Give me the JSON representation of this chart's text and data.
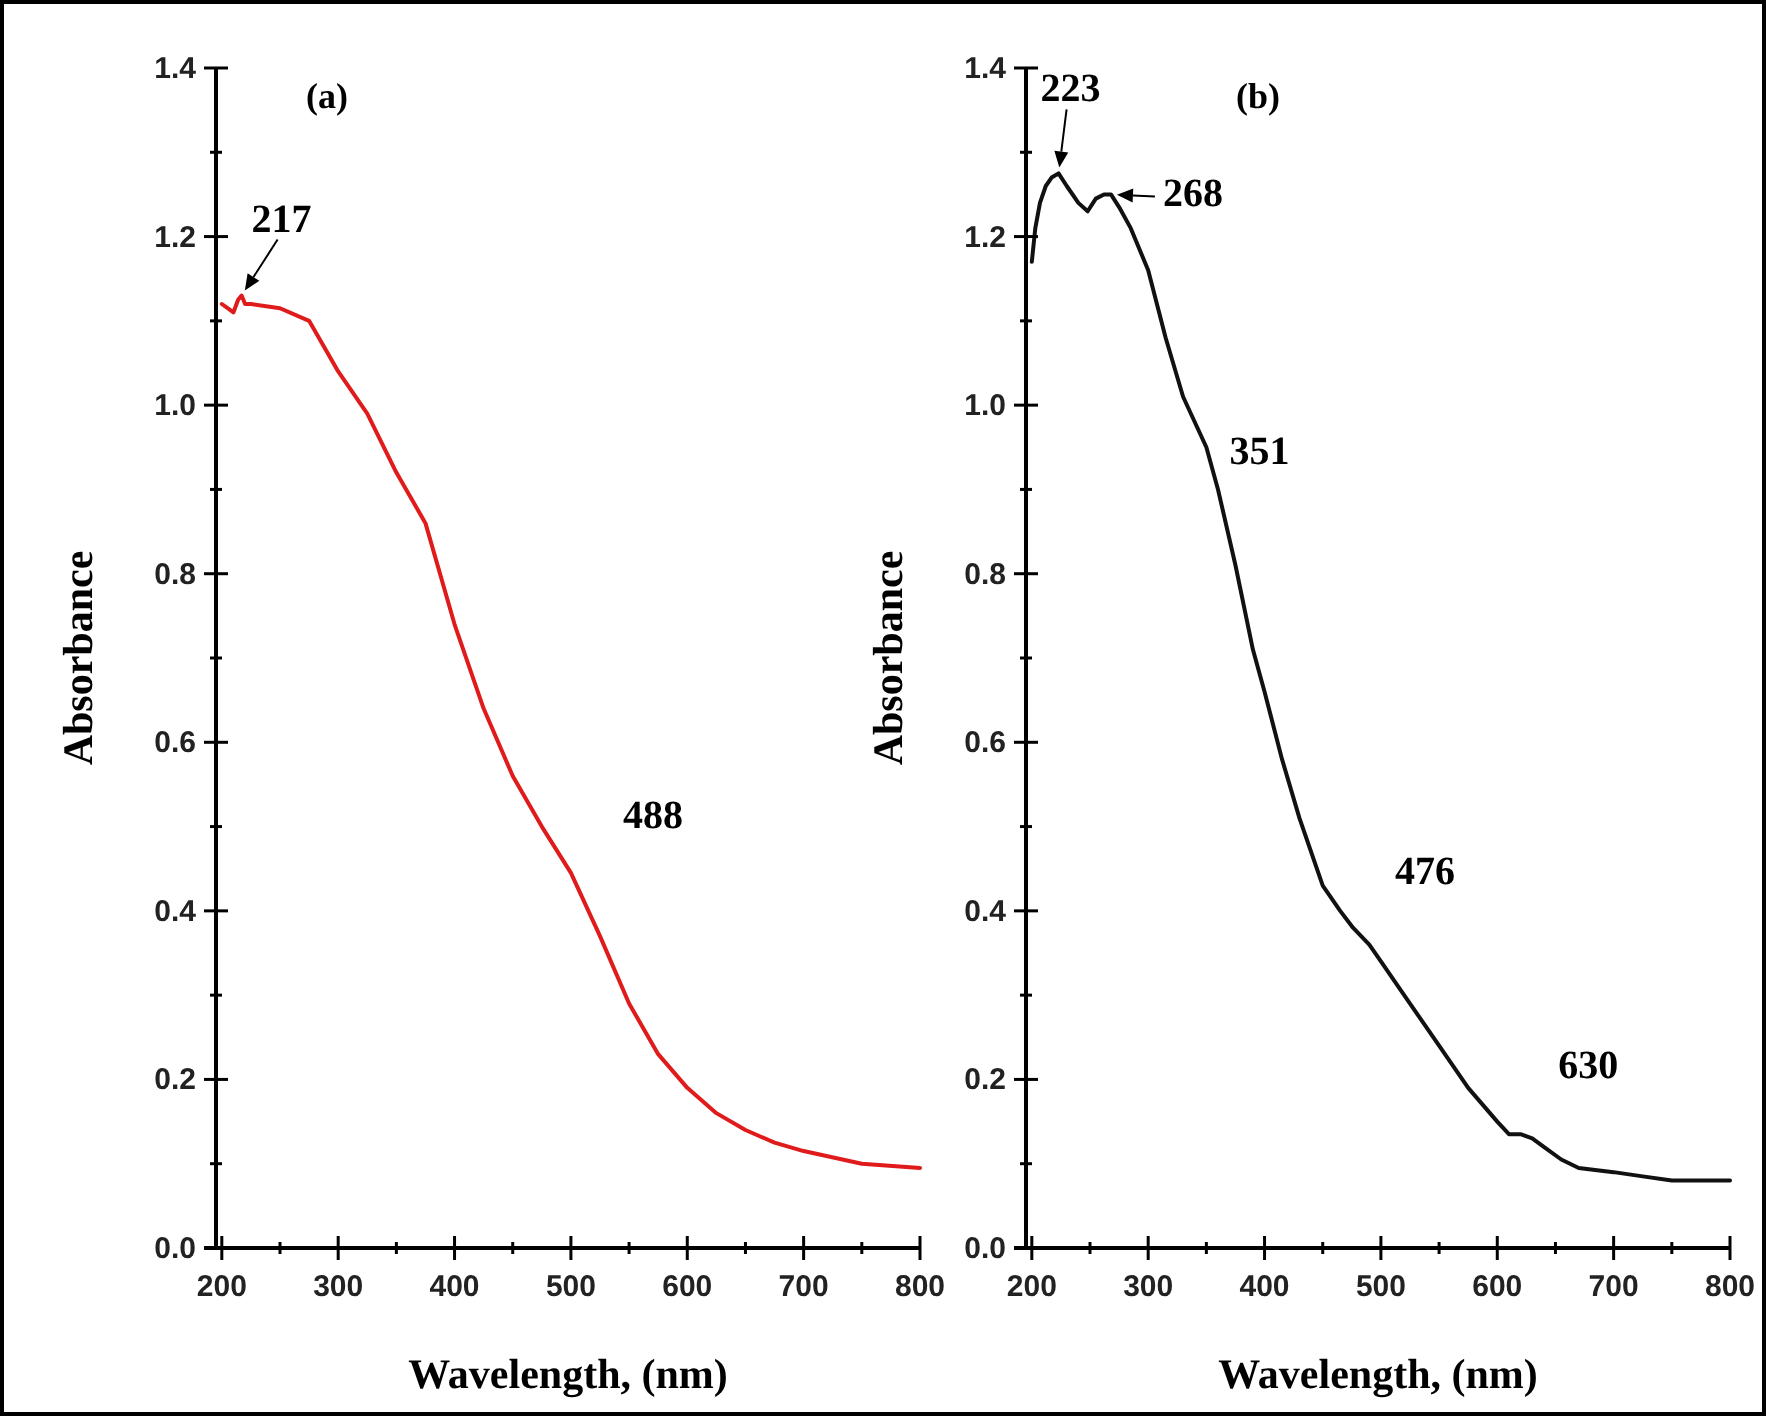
{
  "chart_data": [
    {
      "type": "line",
      "xlabel": "Wavelength, (nm)",
      "ylabel": "Absorbance",
      "xlim": [
        195,
        800
      ],
      "ylim": [
        0,
        1.4
      ],
      "xticks": [
        200,
        {
          "value": 250,
          "label": null
        },
        300,
        {
          "value": 350,
          "label": null
        },
        400,
        {
          "value": 450,
          "label": null
        },
        500,
        {
          "value": 550,
          "label": null
        },
        600,
        {
          "value": 650,
          "label": null
        },
        700,
        {
          "value": 750,
          "label": null
        },
        800
      ],
      "yticks": [
        {
          "value": 0,
          "label": "0.0"
        },
        {
          "value": 0.1,
          "label": null
        },
        {
          "value": 0.2,
          "label": "0.2"
        },
        {
          "value": 0.3,
          "label": null
        },
        {
          "value": 0.4,
          "label": "0.4"
        },
        {
          "value": 0.5,
          "label": null
        },
        {
          "value": 0.6,
          "label": "0.6"
        },
        {
          "value": 0.7,
          "label": null
        },
        {
          "value": 0.8,
          "label": "0.8"
        },
        {
          "value": 0.9,
          "label": null
        },
        {
          "value": 1.0,
          "label": "1.0"
        },
        {
          "value": 1.1,
          "label": null
        },
        {
          "value": 1.2,
          "label": "1.2"
        },
        {
          "value": 1.3,
          "label": null
        },
        {
          "value": 1.4,
          "label": "1.4"
        }
      ],
      "grid": false,
      "line_style": "solid",
      "annotations": [
        "(a)",
        {
          "text": "217",
          "x": 217,
          "y": 1.13
        },
        {
          "text": "488",
          "x": 488,
          "y": 0.47
        }
      ],
      "series": [
        {
          "color": "#e01b1b",
          "x": [
            200,
            205,
            210,
            214,
            217,
            220,
            225,
            250,
            275,
            300,
            325,
            350,
            375,
            400,
            425,
            450,
            475,
            500,
            525,
            550,
            575,
            600,
            625,
            650,
            675,
            700,
            750,
            800
          ],
          "values": [
            1.12,
            1.115,
            1.11,
            1.125,
            1.13,
            1.12,
            1.12,
            1.115,
            1.1,
            1.04,
            0.99,
            0.92,
            0.86,
            0.74,
            0.64,
            0.56,
            0.5,
            0.445,
            0.37,
            0.29,
            0.23,
            0.19,
            0.16,
            0.14,
            0.125,
            0.115,
            0.1,
            0.095
          ]
        }
      ]
    },
    {
      "type": "line",
      "xlabel": "Wavelength, (nm)",
      "ylabel": "Absorbance",
      "xlim": [
        195,
        800
      ],
      "ylim": [
        0,
        1.4
      ],
      "xticks": [
        200,
        {
          "value": 250,
          "label": null
        },
        300,
        {
          "value": 350,
          "label": null
        },
        400,
        {
          "value": 450,
          "label": null
        },
        500,
        {
          "value": 550,
          "label": null
        },
        600,
        {
          "value": 650,
          "label": null
        },
        700,
        {
          "value": 750,
          "label": null
        },
        800
      ],
      "yticks": [
        {
          "value": 0,
          "label": "0.0"
        },
        {
          "value": 0.1,
          "label": null
        },
        {
          "value": 0.2,
          "label": "0.2"
        },
        {
          "value": 0.3,
          "label": null
        },
        {
          "value": 0.4,
          "label": "0.4"
        },
        {
          "value": 0.5,
          "label": null
        },
        {
          "value": 0.6,
          "label": "0.6"
        },
        {
          "value": 0.7,
          "label": null
        },
        {
          "value": 0.8,
          "label": "0.8"
        },
        {
          "value": 0.9,
          "label": null
        },
        {
          "value": 1.0,
          "label": "1.0"
        },
        {
          "value": 1.1,
          "label": null
        },
        {
          "value": 1.2,
          "label": "1.2"
        },
        {
          "value": 1.3,
          "label": null
        },
        {
          "value": 1.4,
          "label": "1.4"
        }
      ],
      "grid": false,
      "line_style": "solid",
      "annotations": [
        "(b)",
        {
          "text": "223",
          "x": 223,
          "y": 1.275
        },
        {
          "text": "268",
          "x": 268,
          "y": 1.25
        },
        {
          "text": "351",
          "x": 351,
          "y": 0.93
        },
        {
          "text": "476",
          "x": 476,
          "y": 0.38
        },
        {
          "text": "630",
          "x": 630,
          "y": 0.13
        }
      ],
      "series": [
        {
          "color": "#111111",
          "x": [
            200,
            203,
            207,
            212,
            217,
            223,
            230,
            240,
            248,
            255,
            262,
            268,
            275,
            285,
            300,
            315,
            330,
            340,
            350,
            360,
            375,
            390,
            400,
            415,
            430,
            450,
            465,
            476,
            490,
            500,
            525,
            550,
            575,
            600,
            610,
            620,
            630,
            640,
            655,
            670,
            700,
            725,
            750,
            775,
            800
          ],
          "values": [
            1.17,
            1.21,
            1.24,
            1.26,
            1.27,
            1.275,
            1.26,
            1.24,
            1.23,
            1.245,
            1.25,
            1.25,
            1.235,
            1.21,
            1.16,
            1.08,
            1.01,
            0.98,
            0.95,
            0.9,
            0.81,
            0.71,
            0.66,
            0.58,
            0.51,
            0.43,
            0.4,
            0.38,
            0.36,
            0.34,
            0.29,
            0.24,
            0.19,
            0.15,
            0.135,
            0.135,
            0.13,
            0.12,
            0.105,
            0.095,
            0.09,
            0.085,
            0.08,
            0.08,
            0.08
          ]
        }
      ]
    }
  ]
}
